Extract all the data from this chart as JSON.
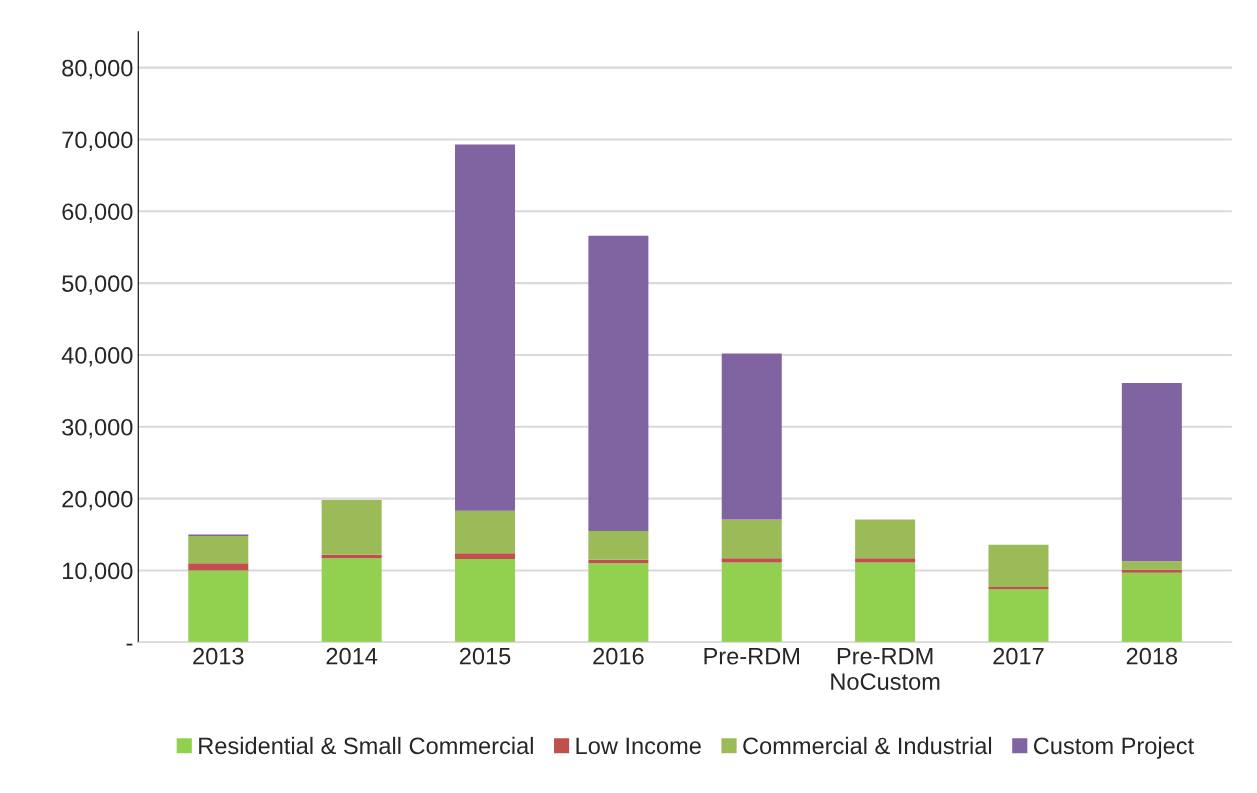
{
  "chart_data": {
    "type": "bar",
    "stacked": true,
    "categories": [
      "2013",
      "2014",
      "2015",
      "2016",
      "Pre-RDM",
      "Pre-RDM\nNoCustom",
      "2017",
      "2018"
    ],
    "series": [
      {
        "name": "Residential & Small Commercial",
        "color": "#92d050",
        "values": [
          10000,
          11700,
          11600,
          11000,
          11100,
          11100,
          7400,
          9700
        ]
      },
      {
        "name": "Low Income",
        "color": "#c0504d",
        "values": [
          1000,
          500,
          800,
          500,
          600,
          600,
          300,
          400
        ]
      },
      {
        "name": "Commercial & Industrial",
        "color": "#9bbb59",
        "values": [
          3800,
          7600,
          5900,
          4000,
          5400,
          5400,
          5900,
          1200
        ]
      },
      {
        "name": "Custom Project",
        "color": "#8064a2",
        "values": [
          200,
          null,
          51000,
          41100,
          23100,
          null,
          null,
          24800
        ]
      }
    ],
    "ylim": [
      0,
      85000
    ],
    "yticks": [
      {
        "value": 0,
        "label": "-"
      },
      {
        "value": 10000,
        "label": "10,000"
      },
      {
        "value": 20000,
        "label": "20,000"
      },
      {
        "value": 30000,
        "label": "30,000"
      },
      {
        "value": 40000,
        "label": "40,000"
      },
      {
        "value": 50000,
        "label": "50,000"
      },
      {
        "value": 60000,
        "label": "60,000"
      },
      {
        "value": 70000,
        "label": "70,000"
      },
      {
        "value": 80000,
        "label": "80,000"
      }
    ],
    "grid": "y",
    "legend": "bottom"
  }
}
